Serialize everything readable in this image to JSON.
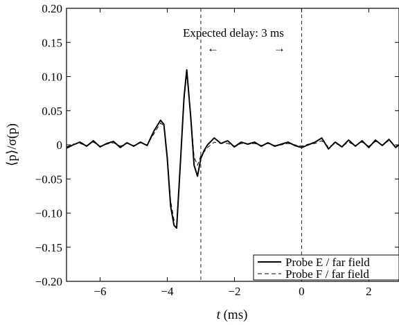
{
  "chart_data": {
    "type": "line",
    "xlabel": "t (ms)",
    "ylabel": "⟨p⟩/σ(p)",
    "xlim": [
      -7,
      2.9
    ],
    "ylim": [
      -0.2,
      0.2
    ],
    "xticks": [
      -6,
      -4,
      -2,
      0,
      2
    ],
    "xtick_labels": [
      "−6",
      "−4",
      "−2",
      "0",
      "2"
    ],
    "yticks": [
      0.2,
      0.15,
      0.1,
      0.05,
      0,
      -0.05,
      -0.1,
      -0.15,
      -0.2
    ],
    "ytick_labels": [
      "0.20",
      "0.15",
      "0.10",
      "0.05",
      "0",
      "−0.05",
      "−0.10",
      "−0.15",
      "−0.20"
    ],
    "grid": false,
    "legend_position": "bottom-right",
    "vlines": [
      -3,
      0
    ],
    "annotation": {
      "text": "Expected delay: 3 ms",
      "arrow_left": "←",
      "arrow_right": "→"
    },
    "series": [
      {
        "name": "Probe E / far field",
        "style": "solid",
        "x": [
          -7.0,
          -6.8,
          -6.6,
          -6.4,
          -6.2,
          -6.0,
          -5.8,
          -5.6,
          -5.4,
          -5.2,
          -5.0,
          -4.8,
          -4.6,
          -4.4,
          -4.3,
          -4.2,
          -4.1,
          -4.0,
          -3.9,
          -3.8,
          -3.72,
          -3.6,
          -3.5,
          -3.42,
          -3.3,
          -3.2,
          -3.1,
          -3.0,
          -2.9,
          -2.8,
          -2.6,
          -2.4,
          -2.2,
          -2.0,
          -1.8,
          -1.6,
          -1.4,
          -1.2,
          -1.0,
          -0.8,
          -0.6,
          -0.4,
          -0.2,
          0.0,
          0.2,
          0.4,
          0.6,
          0.8,
          1.0,
          1.2,
          1.4,
          1.6,
          1.8,
          2.0,
          2.2,
          2.4,
          2.6,
          2.8,
          2.9
        ],
        "y": [
          -0.005,
          0.0,
          0.004,
          -0.002,
          0.006,
          -0.003,
          0.002,
          0.005,
          -0.004,
          0.003,
          -0.002,
          0.004,
          -0.001,
          0.02,
          0.028,
          0.036,
          0.03,
          -0.02,
          -0.09,
          -0.118,
          -0.122,
          -0.02,
          0.07,
          0.11,
          0.04,
          -0.03,
          -0.046,
          -0.02,
          -0.008,
          0.0,
          0.01,
          0.002,
          0.006,
          -0.003,
          0.004,
          0.001,
          0.004,
          -0.002,
          0.003,
          -0.002,
          0.001,
          0.004,
          -0.001,
          -0.004,
          0.0,
          0.004,
          0.01,
          -0.006,
          0.004,
          -0.003,
          0.007,
          -0.002,
          0.006,
          -0.004,
          0.007,
          -0.001,
          0.008,
          -0.004,
          0.0
        ]
      },
      {
        "name": "Probe F / far field",
        "style": "dashed",
        "x": [
          -7.0,
          -6.8,
          -6.6,
          -6.4,
          -6.2,
          -6.0,
          -5.8,
          -5.6,
          -5.4,
          -5.2,
          -5.0,
          -4.8,
          -4.6,
          -4.4,
          -4.3,
          -4.2,
          -4.1,
          -4.0,
          -3.9,
          -3.8,
          -3.72,
          -3.6,
          -3.5,
          -3.42,
          -3.3,
          -3.2,
          -3.1,
          -3.0,
          -2.9,
          -2.8,
          -2.6,
          -2.4,
          -2.2,
          -2.0,
          -1.8,
          -1.6,
          -1.4,
          -1.2,
          -1.0,
          -0.8,
          -0.6,
          -0.4,
          -0.2,
          0.0,
          0.2,
          0.4,
          0.6,
          0.8,
          1.0,
          1.2,
          1.4,
          1.6,
          1.8,
          2.0,
          2.2,
          2.4,
          2.6,
          2.8,
          2.9
        ],
        "y": [
          -0.003,
          0.001,
          0.002,
          -0.001,
          0.004,
          -0.002,
          0.001,
          0.003,
          -0.002,
          0.002,
          -0.001,
          0.003,
          0.0,
          0.016,
          0.024,
          0.032,
          0.028,
          -0.016,
          -0.082,
          -0.11,
          -0.115,
          -0.018,
          0.064,
          0.104,
          0.044,
          -0.018,
          -0.03,
          -0.016,
          -0.01,
          -0.004,
          0.004,
          0.002,
          0.002,
          -0.002,
          0.002,
          0.001,
          0.002,
          -0.001,
          0.002,
          -0.001,
          0.0,
          0.002,
          0.0,
          -0.002,
          0.001,
          0.002,
          0.006,
          -0.003,
          0.002,
          -0.002,
          0.004,
          -0.001,
          0.004,
          -0.002,
          0.005,
          0.0,
          0.006,
          -0.002,
          0.0
        ]
      }
    ]
  }
}
